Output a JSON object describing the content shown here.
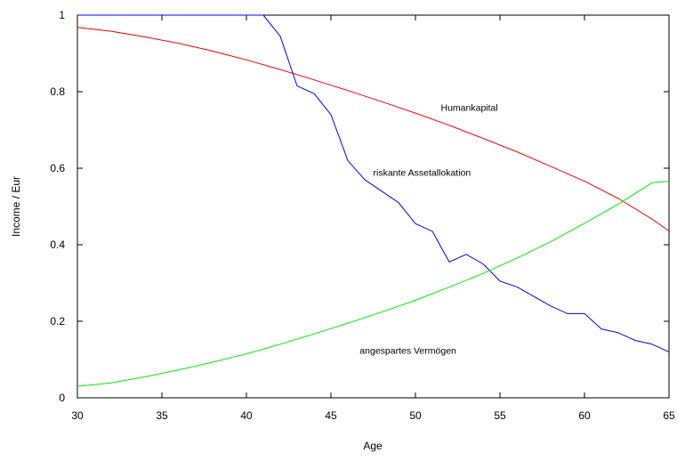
{
  "chart_data": {
    "type": "line",
    "xlabel": "Age",
    "ylabel": "Income / Eur",
    "xlim": [
      30,
      65
    ],
    "ylim": [
      0,
      1
    ],
    "xticks": [
      30,
      35,
      40,
      45,
      50,
      55,
      60,
      65
    ],
    "yticks": [
      0,
      0.2,
      0.4,
      0.6,
      0.8,
      1
    ],
    "ytick_labels": [
      "0",
      "0.2",
      "0.4",
      "0.6",
      "0.8",
      "1"
    ],
    "grid": false,
    "legend": "none",
    "series": [
      {
        "color": "#ff0000",
        "x": [
          30,
          32,
          34,
          36,
          38,
          40,
          42,
          44,
          46,
          48,
          50,
          52,
          54,
          56,
          58,
          60,
          62,
          64,
          65
        ],
        "y": [
          0.968,
          0.958,
          0.943,
          0.926,
          0.906,
          0.883,
          0.858,
          0.831,
          0.803,
          0.774,
          0.744,
          0.712,
          0.678,
          0.643,
          0.605,
          0.566,
          0.521,
          0.467,
          0.436
        ]
      },
      {
        "color": "#0000ff",
        "x": [
          30,
          31,
          32,
          33,
          34,
          35,
          36,
          37,
          38,
          39,
          40,
          41,
          42,
          43,
          44,
          45,
          46,
          47,
          48,
          49,
          50,
          51,
          52,
          53,
          54,
          55,
          56,
          57,
          58,
          59,
          60,
          61,
          62,
          63,
          64,
          65
        ],
        "y": [
          1,
          1,
          1,
          1,
          1,
          1,
          1,
          1,
          1,
          1,
          1,
          1,
          0.945,
          0.815,
          0.795,
          0.74,
          0.62,
          0.57,
          0.54,
          0.51,
          0.455,
          0.435,
          0.355,
          0.375,
          0.35,
          0.305,
          0.29,
          0.265,
          0.24,
          0.22,
          0.22,
          0.18,
          0.17,
          0.15,
          0.14,
          0.12
        ]
      },
      {
        "color": "#00ee00",
        "x": [
          30,
          32,
          34,
          36,
          38,
          40,
          42,
          44,
          46,
          48,
          50,
          52,
          54,
          56,
          58,
          60,
          62,
          64,
          65
        ],
        "y": [
          0.03,
          0.039,
          0.055,
          0.073,
          0.093,
          0.115,
          0.14,
          0.167,
          0.195,
          0.224,
          0.255,
          0.289,
          0.325,
          0.365,
          0.408,
          0.456,
          0.506,
          0.562,
          0.566
        ]
      }
    ],
    "annotations": [
      {
        "text": "Humankapital",
        "x": 51.5,
        "y": 0.75
      },
      {
        "text": "riskante Assetallokation",
        "x": 47.5,
        "y": 0.58
      },
      {
        "text": "angespartes Vermögen",
        "x": 46.7,
        "y": 0.115
      }
    ]
  }
}
